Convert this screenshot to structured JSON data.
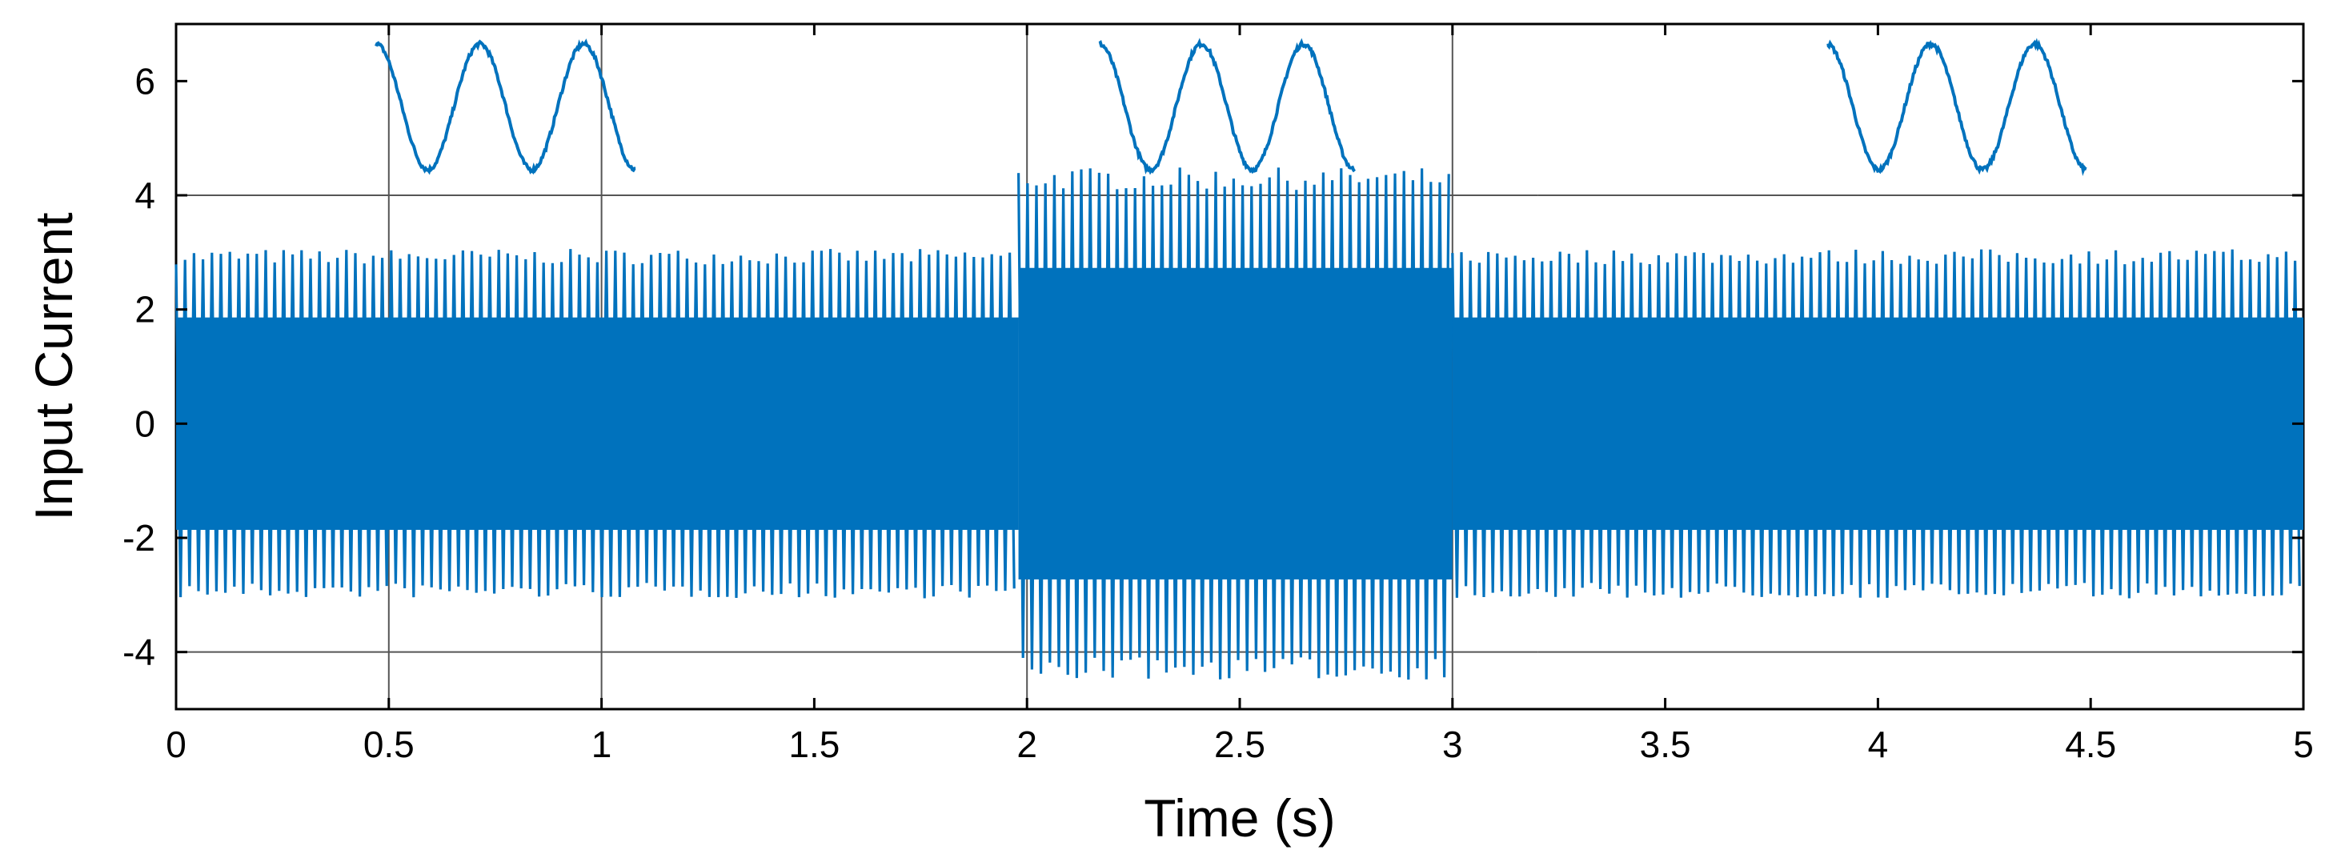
{
  "chart_data": {
    "type": "line",
    "title": "",
    "xlabel": "Time (s)",
    "ylabel": "Input Current",
    "xlim": [
      0,
      5
    ],
    "ylim": [
      -5,
      7
    ],
    "grid": false,
    "x_ticks": [
      0,
      0.5,
      1,
      1.5,
      2,
      2.5,
      3,
      3.5,
      4,
      4.5,
      5
    ],
    "x_tick_labels": [
      "0",
      "0.5",
      "1",
      "1.5",
      "2",
      "2.5",
      "3",
      "3.5",
      "4",
      "4.5",
      "5"
    ],
    "y_ticks": [
      -4,
      -2,
      0,
      2,
      4,
      6
    ],
    "y_tick_labels": [
      "-4",
      "-2",
      "0",
      "2",
      "4",
      "6"
    ],
    "series_color": "#0072BD",
    "reference_color": "#555555",
    "series": [
      {
        "segments": [
          {
            "x_start": 0,
            "x_end": 1.98,
            "amplitude": 3.0
          },
          {
            "x_start": 1.98,
            "x_end": 3.0,
            "amplitude": 4.4
          },
          {
            "x_start": 3.0,
            "x_end": 5.0,
            "amplitude": 3.0
          }
        ]
      }
    ],
    "reference_lines": [
      {
        "y": 4,
        "x_start": 0,
        "x_end": 3.2
      },
      {
        "y": 4,
        "x_start": 3.2,
        "x_end": 5
      },
      {
        "y": -4,
        "x_start": 0,
        "x_end": 3.2
      },
      {
        "y": -4,
        "x_start": 3.2,
        "x_end": 5
      }
    ],
    "insets": [
      {
        "label": "zoom-1",
        "x_start": 0.47,
        "x_end": 1.08,
        "y_center": 5.55,
        "half_height": 1.1,
        "cycles": 2.5,
        "marker_x": [
          0.5,
          1.0
        ]
      },
      {
        "label": "zoom-2",
        "x_start": 2.17,
        "x_end": 2.77,
        "y_center": 5.55,
        "half_height": 1.1,
        "cycles": 2.5,
        "marker_x": [
          2.0,
          3.0
        ]
      },
      {
        "label": "zoom-3",
        "x_start": 3.88,
        "x_end": 4.49,
        "y_center": 5.55,
        "half_height": 1.1,
        "cycles": 2.5,
        "marker_x": []
      }
    ]
  }
}
